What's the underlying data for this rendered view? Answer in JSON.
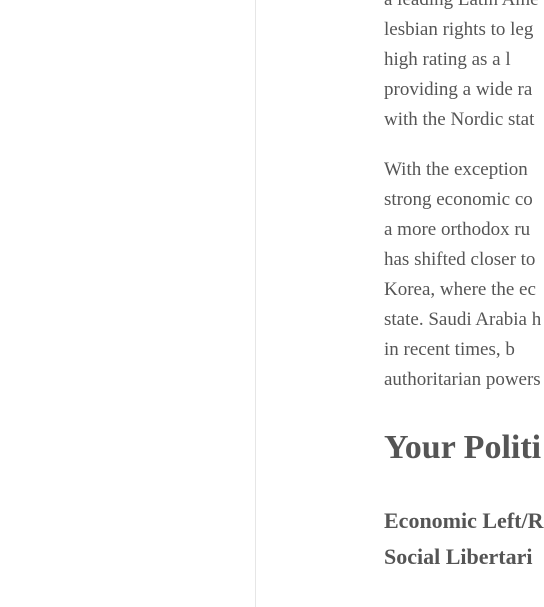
{
  "paragraph1": {
    "lines": [
      "a leading Latin Ame",
      "lesbian rights to leg",
      "high rating as a l",
      "providing a wide ra",
      "with the Nordic stat"
    ]
  },
  "paragraph2": {
    "lines": [
      "With the exception",
      "strong economic co",
      "a more orthodox ru",
      "has shifted closer to",
      "Korea, where the ec",
      "state. Saudi Arabia h",
      "in recent times, b",
      "authoritarian powers"
    ]
  },
  "section_heading": "Your Politi",
  "results": {
    "economic_label": "Economic Left/R",
    "social_label": "Social Libertari"
  }
}
